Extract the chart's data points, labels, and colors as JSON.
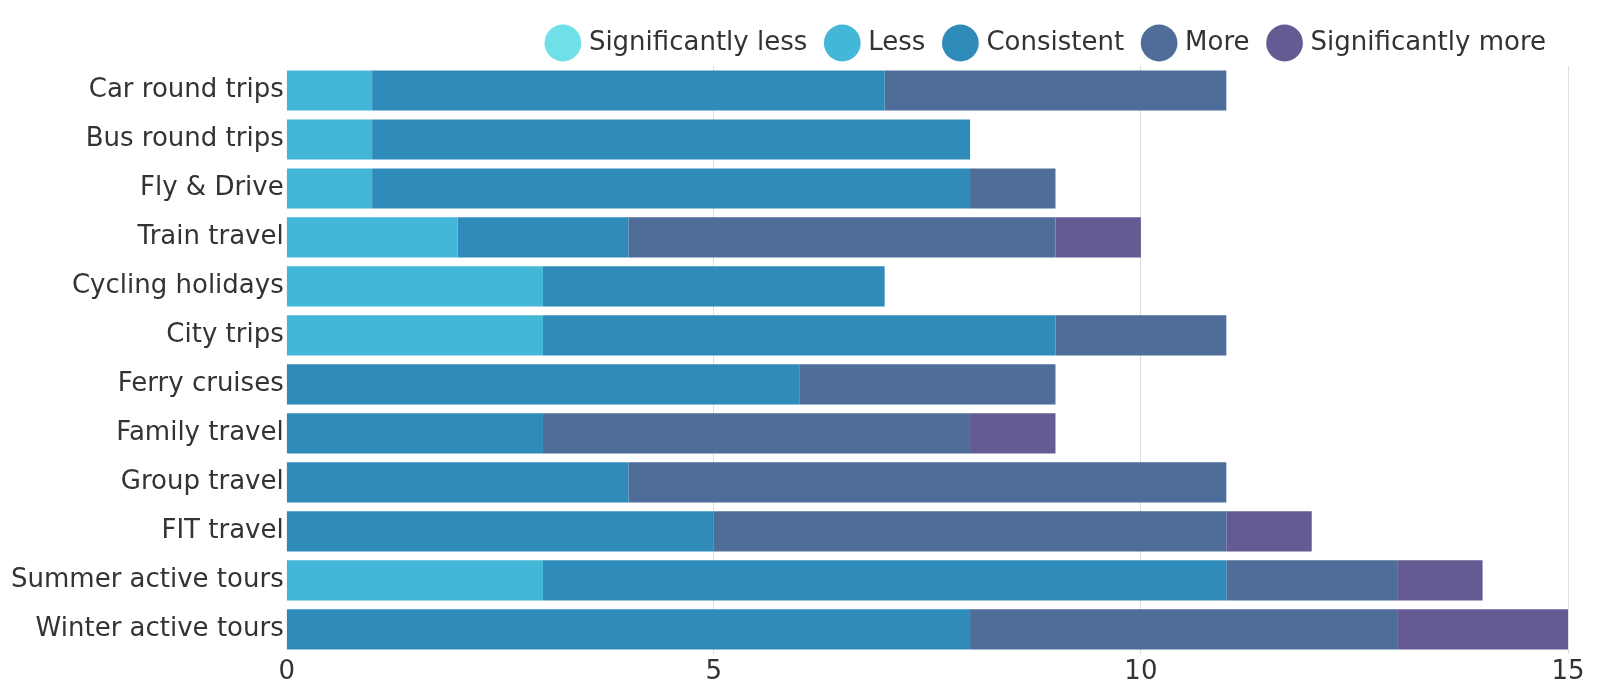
{
  "chart_data": {
    "type": "bar",
    "orientation": "horizontal",
    "stacked": true,
    "categories": [
      "Car round trips",
      "Bus round trips",
      "Fly & Drive",
      "Train travel",
      "Cycling holidays",
      "City trips",
      "Ferry cruises",
      "Family travel",
      "Group travel",
      "FIT travel",
      "Summer active tours",
      "Winter active tours"
    ],
    "series": [
      {
        "name": "Significantly less",
        "color": "#6fe0e8",
        "values": [
          0,
          0,
          0,
          0,
          0,
          0,
          0,
          0,
          0,
          0,
          0,
          0
        ]
      },
      {
        "name": "Less",
        "color": "#42b7d8",
        "values": [
          1,
          1,
          1,
          2,
          3,
          3,
          0,
          0,
          0,
          0,
          3,
          0
        ]
      },
      {
        "name": "Consistent",
        "color": "#2e8bba",
        "values": [
          6,
          7,
          7,
          2,
          4,
          6,
          6,
          3,
          4,
          5,
          8,
          8
        ]
      },
      {
        "name": "More",
        "color": "#4e6e99",
        "values": [
          4,
          0,
          1,
          5,
          0,
          2,
          3,
          5,
          7,
          6,
          2,
          5
        ]
      },
      {
        "name": "Significantly more",
        "color": "#655a91",
        "values": [
          0,
          0,
          0,
          1,
          0,
          0,
          0,
          1,
          0,
          1,
          1,
          2
        ]
      }
    ],
    "xlim": [
      0,
      15
    ],
    "xticks": [
      0,
      5,
      10,
      15
    ],
    "grid": "x",
    "legend": "top right"
  }
}
